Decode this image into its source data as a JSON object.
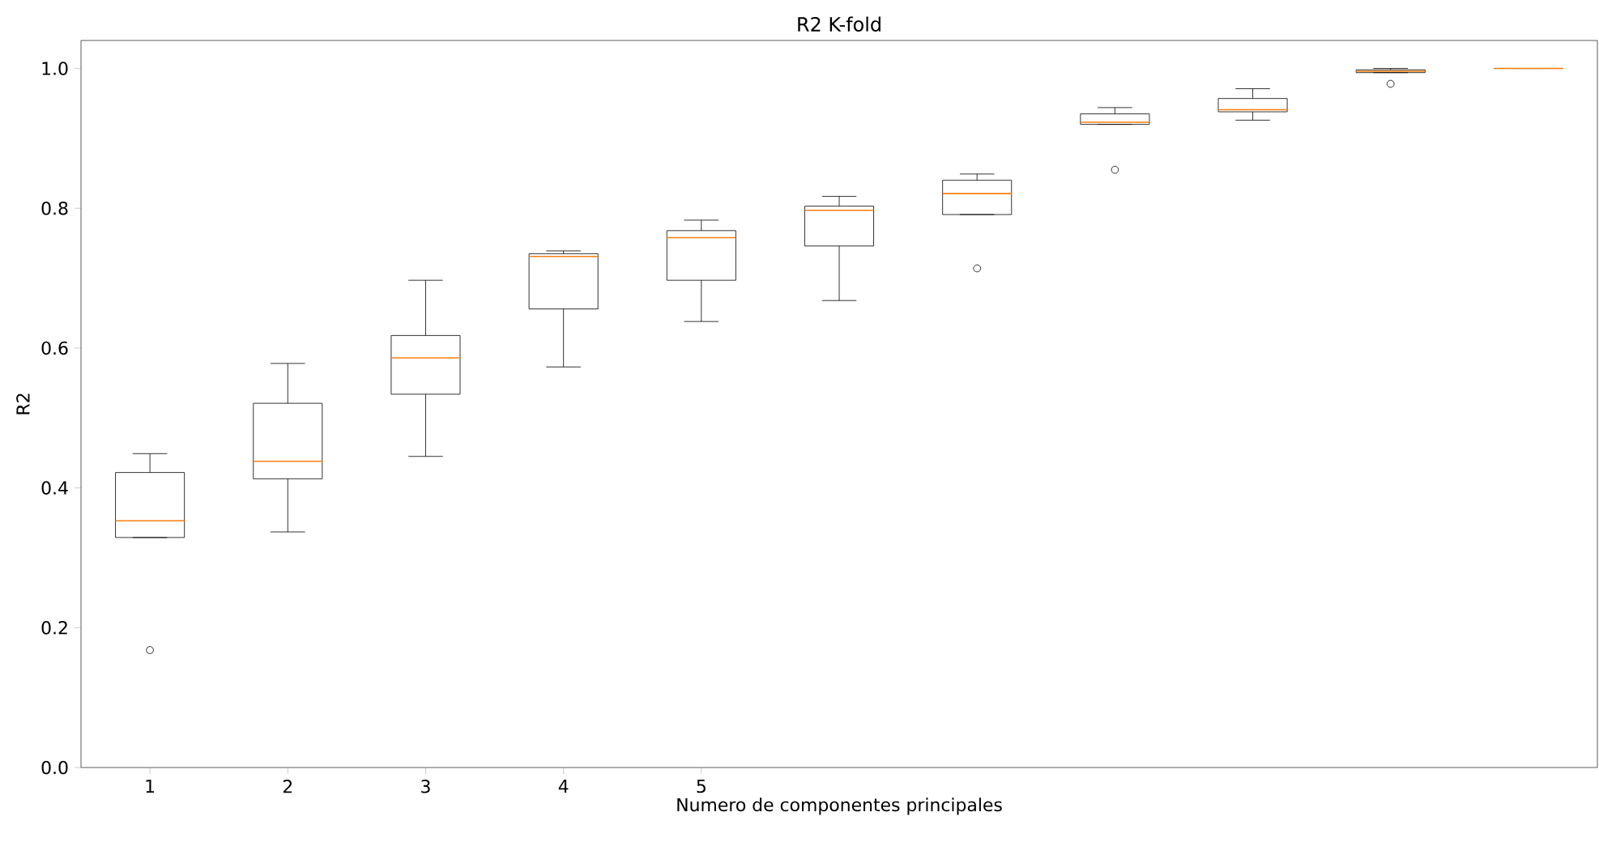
{
  "chart_data": {
    "type": "box",
    "title": "R2 K-fold",
    "xlabel": "Numero de componentes principales",
    "ylabel": "R2",
    "categories": [
      "1",
      "2",
      "3",
      "4",
      "5",
      null,
      null,
      null,
      null,
      null,
      null
    ],
    "ylim": [
      0,
      1.04
    ],
    "yticks": [
      {
        "value": 0,
        "label": "0.0"
      },
      0.2,
      0.4,
      0.6,
      0.8,
      {
        "value": 1,
        "label": "1.0"
      }
    ],
    "boxes": [
      {
        "low": 0.329,
        "q1": 0.329,
        "median": 0.353,
        "q3": 0.422,
        "high": 0.449,
        "outliers": [
          0.168
        ]
      },
      {
        "low": 0.337,
        "q1": 0.413,
        "median": 0.438,
        "q3": 0.521,
        "high": 0.578
      },
      {
        "low": 0.445,
        "q1": 0.534,
        "median": 0.586,
        "q3": 0.618,
        "high": 0.697
      },
      {
        "low": 0.573,
        "q1": 0.656,
        "median": 0.731,
        "q3": 0.735,
        "high": 0.739
      },
      {
        "low": 0.638,
        "q1": 0.697,
        "median": 0.758,
        "q3": 0.768,
        "high": 0.783
      },
      {
        "low": 0.668,
        "q1": 0.746,
        "median": 0.797,
        "q3": 0.803,
        "high": 0.817
      },
      {
        "low": 0.791,
        "q1": 0.791,
        "median": 0.821,
        "q3": 0.84,
        "high": 0.849,
        "outliers": [
          0.714
        ]
      },
      {
        "low": 0.92,
        "q1": 0.92,
        "median": 0.923,
        "q3": 0.935,
        "high": 0.944,
        "outliers": [
          0.855
        ]
      },
      {
        "low": 0.926,
        "q1": 0.938,
        "median": 0.941,
        "q3": 0.957,
        "high": 0.971
      },
      {
        "low": 0.994,
        "q1": 0.994,
        "median": 0.996,
        "q3": 0.998,
        "high": 1.0,
        "outliers": [
          0.978
        ]
      },
      {
        "low": 1.0,
        "q1": 1.0,
        "median": 1.0,
        "q3": 1.0,
        "high": 1.0
      }
    ]
  }
}
